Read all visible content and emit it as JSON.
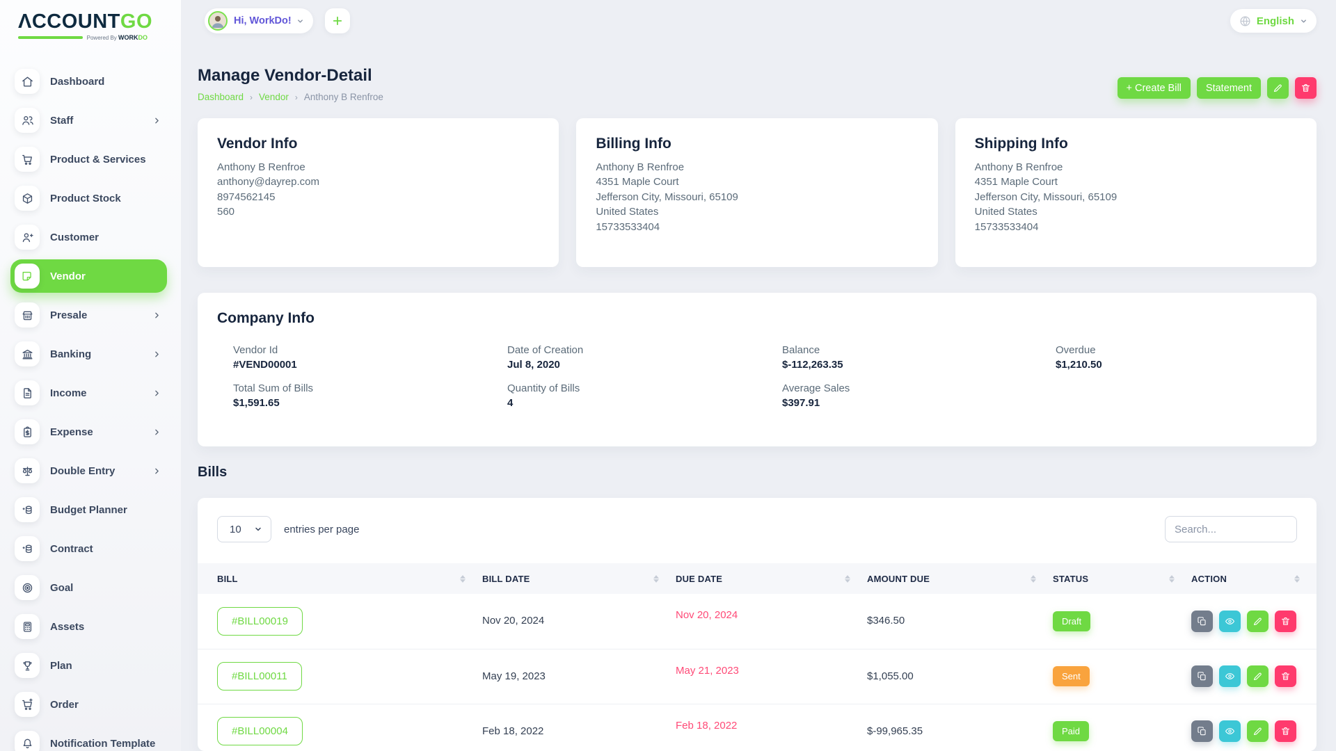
{
  "brand": {
    "name_primary": "ΛCCOUNT",
    "name_secondary": "GO",
    "powered_prefix": "Powered By ",
    "powered_brand_1": "WORK",
    "powered_brand_2": "DO"
  },
  "header": {
    "greeting": "Hi, WorkDo!",
    "add_label": "+",
    "language": "English"
  },
  "sidebar": {
    "items": [
      {
        "label": "Dashboard",
        "icon": "home",
        "active": false,
        "chevron": false
      },
      {
        "label": "Staff",
        "icon": "users",
        "active": false,
        "chevron": true
      },
      {
        "label": "Product & Services",
        "icon": "cart",
        "active": false,
        "chevron": false
      },
      {
        "label": "Product Stock",
        "icon": "box",
        "active": false,
        "chevron": false
      },
      {
        "label": "Customer",
        "icon": "user-plus",
        "active": false,
        "chevron": false
      },
      {
        "label": "Vendor",
        "icon": "note",
        "active": true,
        "chevron": false
      },
      {
        "label": "Presale",
        "icon": "store",
        "active": false,
        "chevron": true
      },
      {
        "label": "Banking",
        "icon": "bank",
        "active": false,
        "chevron": true
      },
      {
        "label": "Income",
        "icon": "file-text",
        "active": false,
        "chevron": true
      },
      {
        "label": "Expense",
        "icon": "clipboard-dollar",
        "active": false,
        "chevron": true
      },
      {
        "label": "Double Entry",
        "icon": "scale",
        "active": false,
        "chevron": true
      },
      {
        "label": "Budget Planner",
        "icon": "coins-dollar",
        "active": false,
        "chevron": false
      },
      {
        "label": "Contract",
        "icon": "coins-dollar",
        "active": false,
        "chevron": false
      },
      {
        "label": "Goal",
        "icon": "target",
        "active": false,
        "chevron": false
      },
      {
        "label": "Assets",
        "icon": "calculator",
        "active": false,
        "chevron": false
      },
      {
        "label": "Plan",
        "icon": "trophy",
        "active": false,
        "chevron": false
      },
      {
        "label": "Order",
        "icon": "cart-plus",
        "active": false,
        "chevron": false
      },
      {
        "label": "Notification Template",
        "icon": "bell",
        "active": false,
        "chevron": false
      }
    ]
  },
  "page": {
    "title": "Manage Vendor-Detail",
    "breadcrumb": {
      "links": [
        "Dashboard",
        "Vendor"
      ],
      "current": "Anthony B Renfroe"
    },
    "actions": {
      "create_bill": "+ Create Bill",
      "statement": "Statement"
    }
  },
  "cards": {
    "vendor_info": {
      "title": "Vendor Info",
      "lines": [
        "Anthony B Renfroe",
        "anthony@dayrep.com",
        "8974562145",
        "560"
      ]
    },
    "billing_info": {
      "title": "Billing Info",
      "lines": [
        "Anthony B Renfroe",
        "4351 Maple Court",
        "Jefferson City, Missouri, 65109",
        "United States",
        "15733533404"
      ]
    },
    "shipping_info": {
      "title": "Shipping Info",
      "lines": [
        "Anthony B Renfroe",
        "4351 Maple Court",
        "Jefferson City, Missouri, 65109",
        "United States",
        "15733533404"
      ]
    },
    "company_info": {
      "title": "Company Info",
      "fields": [
        {
          "label": "Vendor Id",
          "value": "#VEND00001"
        },
        {
          "label": "Date of Creation",
          "value": "Jul 8, 2020"
        },
        {
          "label": "Balance",
          "value": "$-112,263.35"
        },
        {
          "label": "Overdue",
          "value": "$1,210.50"
        },
        {
          "label": "Total Sum of Bills",
          "value": "$1,591.65"
        },
        {
          "label": "Quantity of Bills",
          "value": "4"
        },
        {
          "label": "Average Sales",
          "value": "$397.91"
        }
      ]
    }
  },
  "bills": {
    "section_title": "Bills",
    "entries_per_page_value": "10",
    "entries_per_page_label": "entries per page",
    "search_placeholder": "Search...",
    "columns": [
      "BILL",
      "BILL DATE",
      "DUE DATE",
      "AMOUNT DUE",
      "STATUS",
      "ACTION"
    ],
    "rows": [
      {
        "bill": "#BILL00019",
        "bill_date": "Nov 20, 2024",
        "due_date": "Nov 20, 2024",
        "amount": "$346.50",
        "status": "Draft",
        "status_color": "#6fd943"
      },
      {
        "bill": "#BILL00011",
        "bill_date": "May 19, 2023",
        "due_date": "May 21, 2023",
        "amount": "$1,055.00",
        "status": "Sent",
        "status_color": "#f9a33d"
      },
      {
        "bill": "#BILL00004",
        "bill_date": "Feb 18, 2022",
        "due_date": "Feb 18, 2022",
        "amount": "$-99,965.35",
        "status": "Paid",
        "status_color": "#6fd943"
      }
    ]
  },
  "colors": {
    "accent_green": "#6fd943",
    "pink": "#ff3a6d",
    "cyan": "#3cc7d6",
    "orange": "#f9a33d",
    "navy": "#17253d"
  }
}
